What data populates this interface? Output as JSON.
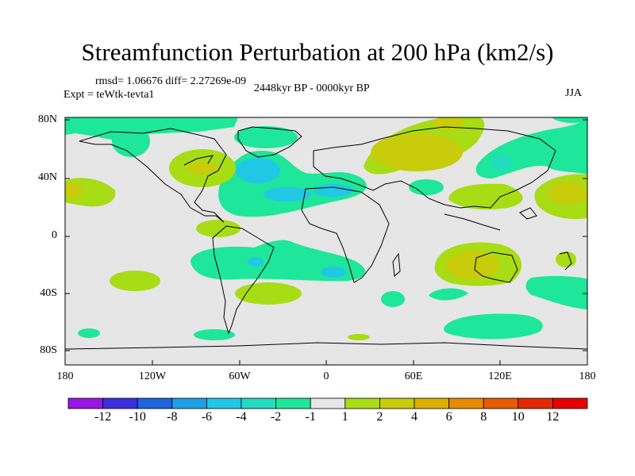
{
  "title": "Streamfunction Perturbation at 200 hPa (km2/s)",
  "stats": "rmsd= 1.06676 diff= 2.27269e-09",
  "experiment": "Expt = teWtk-tevta1",
  "period": "2448kyr BP - 0000kyr BP",
  "season": "JJA",
  "lat_labels": [
    "80N",
    "40N",
    "0",
    "40S",
    "80S"
  ],
  "lon_labels": [
    "180",
    "120W",
    "60W",
    "0",
    "60E",
    "120E",
    "180"
  ],
  "colorbar": {
    "labels": [
      "-12",
      "-10",
      "-8",
      "-6",
      "-4",
      "-2",
      "-1",
      "1",
      "2",
      "4",
      "6",
      "8",
      "10",
      "12"
    ],
    "colors": [
      "#9a16e6",
      "#3c2ee0",
      "#1e64dc",
      "#1e9ee6",
      "#20c8e6",
      "#22dcc0",
      "#1ee69a",
      "#e6e6e6",
      "#a8dc14",
      "#c8cc0a",
      "#dcb000",
      "#e68a00",
      "#e65a00",
      "#e62800",
      "#e60000"
    ]
  },
  "colors": {
    "background": "#e6e6e6",
    "neg_weak": "#1ee69a",
    "neg_mid": "#22dcc0",
    "neg_strong": "#20c8e6",
    "pos_weak": "#a8dc14",
    "pos_mid": "#c8cc0a",
    "coast": "#000000"
  }
}
